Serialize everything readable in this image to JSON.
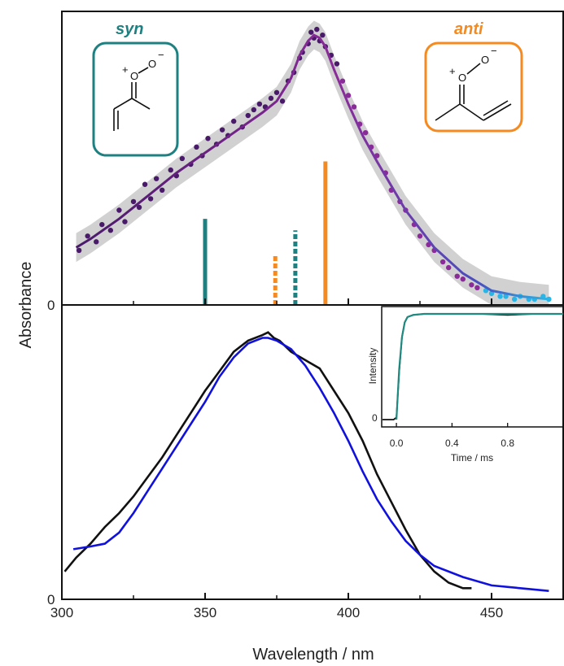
{
  "chart_data": [
    {
      "panel": "top",
      "type": "scatter+line",
      "xlim": [
        300,
        475
      ],
      "ylabel": "Absorbance",
      "y_tick_labels": [
        "0"
      ],
      "grid": false,
      "colors": {
        "data_start": "#4a1a6a",
        "data_mid": "#8a2b99",
        "data_end": "#29b6e6",
        "band": "#cccccc"
      },
      "fit_curve": {
        "x": [
          305,
          310,
          320,
          330,
          340,
          350,
          360,
          370,
          375,
          380,
          383,
          386,
          388,
          390,
          392,
          395,
          400,
          405,
          410,
          420,
          430,
          440,
          450,
          460,
          470
        ],
        "y": [
          0.2,
          0.23,
          0.3,
          0.38,
          0.46,
          0.53,
          0.6,
          0.67,
          0.71,
          0.79,
          0.87,
          0.92,
          0.94,
          0.93,
          0.9,
          0.82,
          0.7,
          0.59,
          0.5,
          0.33,
          0.2,
          0.11,
          0.05,
          0.03,
          0.02
        ]
      },
      "scatter_points": {
        "x": [
          306,
          309,
          312,
          314,
          317,
          320,
          322,
          325,
          327,
          329,
          331,
          333,
          335,
          338,
          340,
          342,
          345,
          347,
          349,
          351,
          354,
          356,
          358,
          360,
          363,
          365,
          367,
          369,
          371,
          373,
          375,
          377,
          379,
          381,
          383,
          384,
          386,
          387,
          388,
          389,
          390,
          391,
          392,
          394,
          396,
          398,
          400,
          402,
          404,
          406,
          408,
          410,
          413,
          415,
          418,
          420,
          423,
          425,
          428,
          430,
          433,
          435,
          438,
          440,
          443,
          445,
          448,
          450,
          453,
          455,
          458,
          460,
          463,
          465,
          468,
          470
        ],
        "y": [
          0.19,
          0.24,
          0.22,
          0.28,
          0.26,
          0.33,
          0.29,
          0.36,
          0.34,
          0.42,
          0.37,
          0.44,
          0.4,
          0.47,
          0.45,
          0.51,
          0.49,
          0.55,
          0.52,
          0.58,
          0.56,
          0.61,
          0.59,
          0.64,
          0.62,
          0.66,
          0.68,
          0.7,
          0.69,
          0.72,
          0.74,
          0.71,
          0.78,
          0.81,
          0.86,
          0.88,
          0.91,
          0.95,
          0.93,
          0.96,
          0.92,
          0.94,
          0.9,
          0.87,
          0.84,
          0.78,
          0.73,
          0.69,
          0.63,
          0.6,
          0.55,
          0.52,
          0.46,
          0.4,
          0.36,
          0.33,
          0.28,
          0.24,
          0.21,
          0.19,
          0.15,
          0.13,
          0.1,
          0.09,
          0.07,
          0.06,
          0.05,
          0.04,
          0.03,
          0.03,
          0.02,
          0.03,
          0.02,
          0.02,
          0.03,
          0.02
        ]
      },
      "sticks": [
        {
          "x": 350,
          "height": 0.3,
          "color": "#1e8080",
          "style": "solid",
          "group": "syn"
        },
        {
          "x": 374.5,
          "height": 0.17,
          "color": "#f48a20",
          "style": "dashed",
          "group": "anti"
        },
        {
          "x": 381.5,
          "height": 0.26,
          "color": "#1e8080",
          "style": "dashed",
          "group": "syn"
        },
        {
          "x": 392,
          "height": 0.5,
          "color": "#f48a20",
          "style": "solid",
          "group": "anti"
        }
      ],
      "legend": {
        "syn": {
          "label": "syn",
          "color": "#1e8080",
          "placement": "top-left"
        },
        "anti": {
          "label": "anti",
          "color": "#f48a20",
          "placement": "top-right"
        }
      }
    },
    {
      "panel": "bottom",
      "type": "line",
      "xlim": [
        300,
        475
      ],
      "xlabel": "Wavelength / nm",
      "x_tick_labels": [
        "300",
        "350",
        "400",
        "450"
      ],
      "y_tick_labels": [
        "0"
      ],
      "series": [
        {
          "color": "#111111",
          "x": [
            301,
            305,
            310,
            315,
            320,
            325,
            330,
            335,
            340,
            345,
            350,
            355,
            360,
            365,
            370,
            372,
            374,
            376,
            378,
            380,
            385,
            390,
            395,
            400,
            405,
            410,
            415,
            420,
            425,
            430,
            435,
            440,
            443
          ],
          "y": [
            0.1,
            0.15,
            0.2,
            0.26,
            0.31,
            0.37,
            0.44,
            0.51,
            0.59,
            0.67,
            0.75,
            0.82,
            0.89,
            0.93,
            0.95,
            0.96,
            0.94,
            0.93,
            0.91,
            0.89,
            0.86,
            0.83,
            0.75,
            0.67,
            0.57,
            0.45,
            0.35,
            0.25,
            0.16,
            0.1,
            0.06,
            0.04,
            0.04
          ]
        },
        {
          "color": "#1111dd",
          "x": [
            304,
            310,
            315,
            320,
            325,
            330,
            335,
            340,
            345,
            350,
            355,
            360,
            365,
            370,
            372,
            375,
            380,
            385,
            390,
            395,
            400,
            405,
            410,
            415,
            420,
            425,
            430,
            440,
            450,
            460,
            470
          ],
          "y": [
            0.18,
            0.19,
            0.2,
            0.24,
            0.31,
            0.39,
            0.47,
            0.55,
            0.63,
            0.71,
            0.8,
            0.87,
            0.92,
            0.94,
            0.94,
            0.93,
            0.9,
            0.84,
            0.76,
            0.67,
            0.57,
            0.46,
            0.36,
            0.28,
            0.21,
            0.16,
            0.12,
            0.08,
            0.05,
            0.04,
            0.03
          ]
        }
      ]
    },
    {
      "panel": "inset",
      "type": "line",
      "xlabel": "Time / ms",
      "ylabel": "Intensity",
      "xlim": [
        -0.1,
        1.2
      ],
      "x_tick_labels": [
        "0.0",
        "0.4",
        "0.8"
      ],
      "y_tick_labels": [
        "0"
      ],
      "series": [
        {
          "color": "#111111",
          "x": [
            -0.1,
            -0.02,
            0.0,
            0.02,
            0.04,
            0.06,
            0.08,
            0.12,
            0.2,
            0.4,
            0.6,
            0.8,
            1.0,
            1.2
          ],
          "y": [
            0.0,
            0.0,
            0.02,
            0.45,
            0.78,
            0.92,
            0.97,
            0.99,
            1.0,
            1.0,
            1.0,
            0.99,
            1.0,
            1.0
          ]
        },
        {
          "color": "#1e8a80",
          "x": [
            0.0,
            0.02,
            0.04,
            0.06,
            0.08,
            0.12,
            0.2,
            0.4,
            0.6,
            0.8,
            1.0,
            1.2
          ],
          "y": [
            0.0,
            0.48,
            0.78,
            0.92,
            0.97,
            0.99,
            1.0,
            1.0,
            1.0,
            1.0,
            1.0,
            1.0
          ]
        }
      ]
    }
  ],
  "structures": {
    "plus_sign": "+",
    "oxygen": "O",
    "minus_sign": "−"
  }
}
